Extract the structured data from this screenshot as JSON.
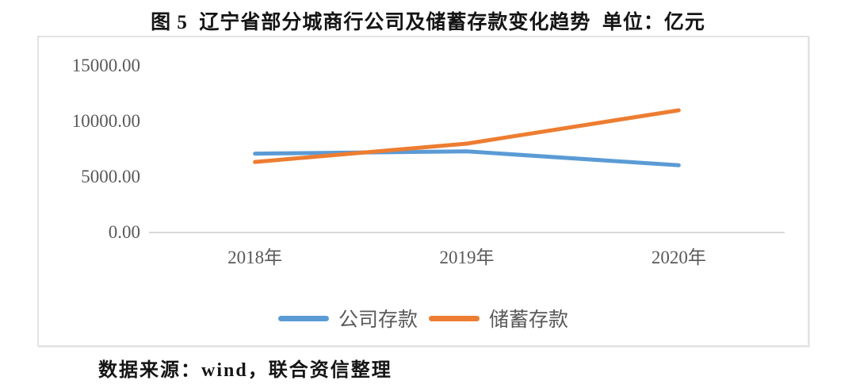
{
  "title": "图 5  辽宁省部分城商行公司及储蓄存款变化趋势  单位：亿元",
  "footer": "数据来源：wind，联合资信整理",
  "chart_data": {
    "type": "line",
    "title": "图 5  辽宁省部分城商行公司及储蓄存款变化趋势",
    "unit": "亿元",
    "categories": [
      "2018年",
      "2019年",
      "2020年"
    ],
    "series": [
      {
        "name": "公司存款",
        "color": "#5B9BD5",
        "values": [
          7100,
          7300,
          6050
        ]
      },
      {
        "name": "储蓄存款",
        "color": "#ED7D31",
        "values": [
          6350,
          8000,
          11000
        ]
      }
    ],
    "ylim": [
      0,
      15000
    ],
    "yticks": [
      {
        "value": 15000,
        "label": "15000.00"
      },
      {
        "value": 10000,
        "label": "10000.00"
      },
      {
        "value": 5000,
        "label": "5000.00"
      },
      {
        "value": 0,
        "label": "0.00"
      }
    ],
    "grid": false,
    "legend_position": "bottom",
    "axis_color": "#D9D9D9",
    "tick_color": "#595959",
    "line_width": 5
  }
}
